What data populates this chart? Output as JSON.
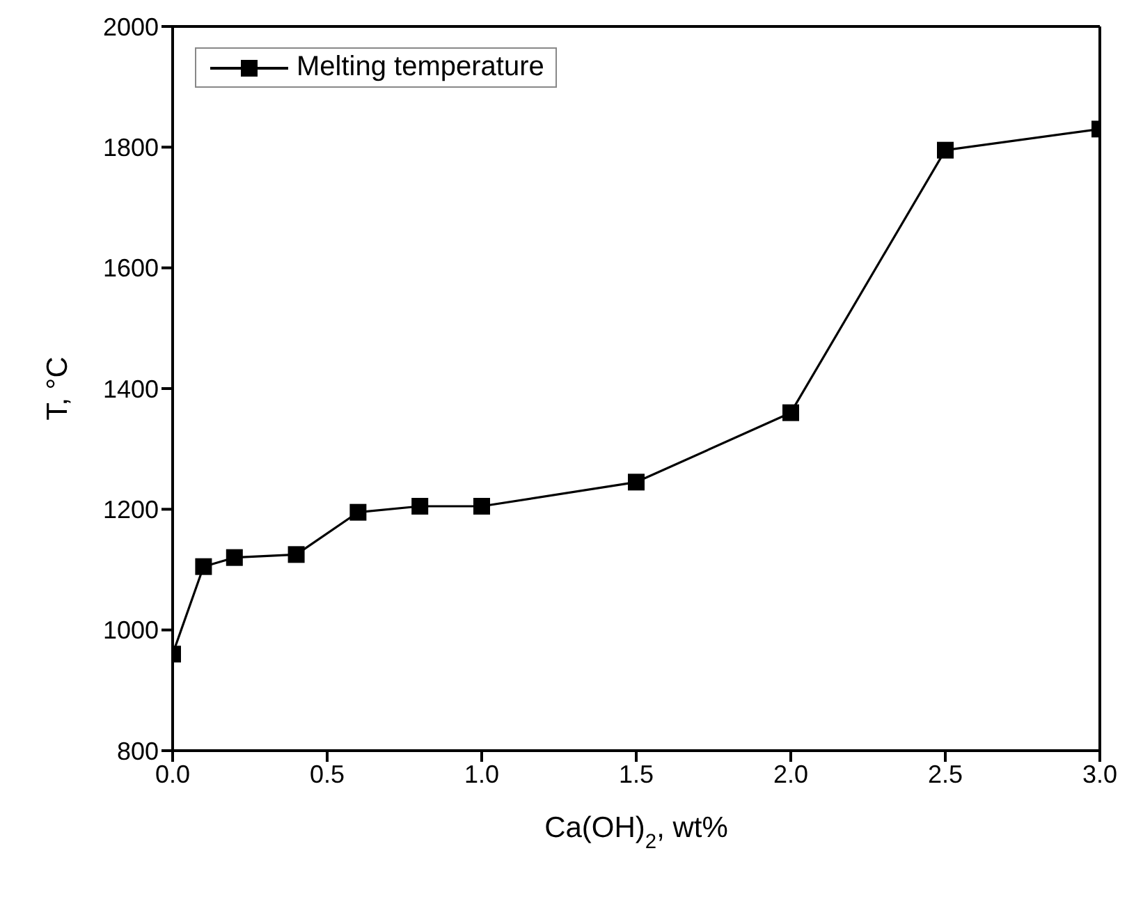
{
  "chart_data": {
    "type": "line",
    "xlabel": "Ca(OH)$_{2}$, wt%",
    "ylabel": "T, °C",
    "x": [
      0,
      0.1,
      0.2,
      0.4,
      0.6,
      0.8,
      1.0,
      1.5,
      2.0,
      2.5,
      3.0
    ],
    "series": [
      {
        "name": "Melting temperature",
        "color": "#000000",
        "values": [
          960,
          1105,
          1120,
          1125,
          1195,
          1205,
          1205,
          1245,
          1360,
          1795,
          1830
        ]
      }
    ],
    "xlim": [
      0,
      3
    ],
    "xticks": [
      {
        "value": 0,
        "label": "0.0"
      },
      {
        "value": 0.5,
        "label": "0.5"
      },
      {
        "value": 1,
        "label": "1.0"
      },
      {
        "value": 1.5,
        "label": "1.5"
      },
      {
        "value": 2,
        "label": "2.0"
      },
      {
        "value": 2.5,
        "label": "2.5"
      },
      {
        "value": 3,
        "label": "3.0"
      }
    ],
    "ylim": [
      800,
      2000
    ],
    "yticks": [
      800,
      1000,
      1200,
      1400,
      1600,
      1800,
      2000
    ],
    "grid": false,
    "legend": "top left",
    "marker": "square",
    "line_style": "solid"
  }
}
